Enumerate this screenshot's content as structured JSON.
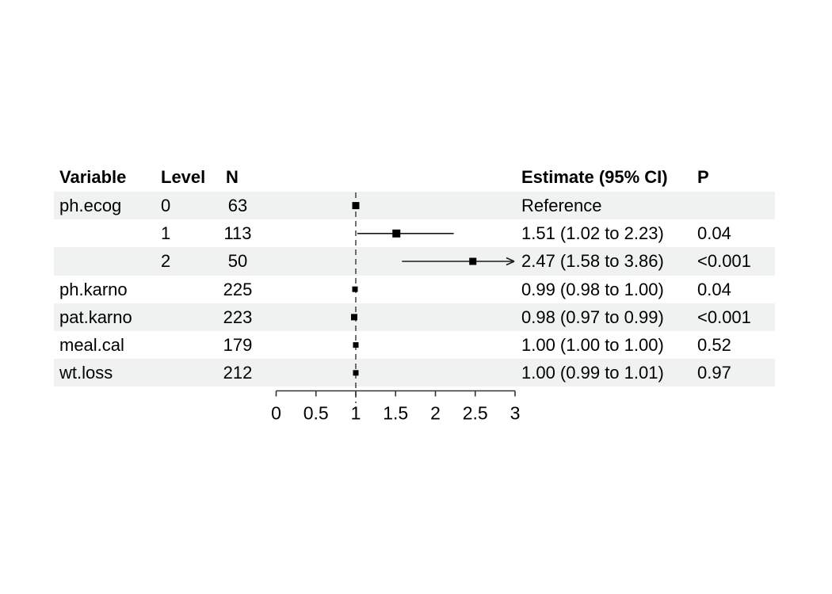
{
  "chart_data": {
    "type": "forest",
    "title": "",
    "xlabel": "",
    "xlim": [
      0,
      3
    ],
    "reference_line": 1,
    "legend": "none",
    "grid": false,
    "headers": {
      "variable": "Variable",
      "level": "Level",
      "n": "N",
      "estimate": "Estimate (95% CI)",
      "p": "P"
    },
    "x_ticks": [
      {
        "value": 0,
        "label": "0"
      },
      {
        "value": 0.5,
        "label": "0.5"
      },
      {
        "value": 1,
        "label": "1"
      },
      {
        "value": 1.5,
        "label": "1.5"
      },
      {
        "value": 2,
        "label": "2"
      },
      {
        "value": 2.5,
        "label": "2.5"
      },
      {
        "value": 3,
        "label": "3"
      }
    ],
    "rows": [
      {
        "variable": "ph.ecog",
        "level": "0",
        "n": "63",
        "estimate_label": "Reference",
        "p": "",
        "shaded": true,
        "est": 1.0,
        "lo": null,
        "hi": null,
        "arrow_hi": false,
        "marker_size": 9
      },
      {
        "variable": "",
        "level": "1",
        "n": "113",
        "estimate_label": "1.51 (1.02 to 2.23)",
        "p": "0.04",
        "shaded": false,
        "est": 1.51,
        "lo": 1.02,
        "hi": 2.23,
        "arrow_hi": false,
        "marker_size": 10
      },
      {
        "variable": "",
        "level": "2",
        "n": "50",
        "estimate_label": "2.47 (1.58 to 3.86)",
        "p": "<0.001",
        "shaded": true,
        "est": 2.47,
        "lo": 1.58,
        "hi": 3.86,
        "arrow_hi": true,
        "marker_size": 9
      },
      {
        "variable": "ph.karno",
        "level": "",
        "n": "225",
        "estimate_label": "0.99 (0.98 to 1.00)",
        "p": "0.04",
        "shaded": false,
        "est": 0.99,
        "lo": 0.98,
        "hi": 1.0,
        "arrow_hi": false,
        "marker_size": 7
      },
      {
        "variable": "pat.karno",
        "level": "",
        "n": "223",
        "estimate_label": "0.98 (0.97 to 0.99)",
        "p": "<0.001",
        "shaded": true,
        "est": 0.98,
        "lo": 0.97,
        "hi": 0.99,
        "arrow_hi": false,
        "marker_size": 8
      },
      {
        "variable": "meal.cal",
        "level": "",
        "n": "179",
        "estimate_label": "1.00 (1.00 to 1.00)",
        "p": "0.52",
        "shaded": false,
        "est": 1.0,
        "lo": 1.0,
        "hi": 1.0,
        "arrow_hi": false,
        "marker_size": 7
      },
      {
        "variable": "wt.loss",
        "level": "",
        "n": "212",
        "estimate_label": "1.00 (0.99 to 1.01)",
        "p": "0.97",
        "shaded": true,
        "est": 1.0,
        "lo": 0.99,
        "hi": 1.01,
        "arrow_hi": false,
        "marker_size": 7
      }
    ],
    "colors": {
      "row_shade": "#eff2f1",
      "ink": "#000000",
      "ci_line": "#1a1a1a",
      "ref_line": "#4d4d4d",
      "axis": "#333333",
      "marker": "#000000"
    }
  }
}
